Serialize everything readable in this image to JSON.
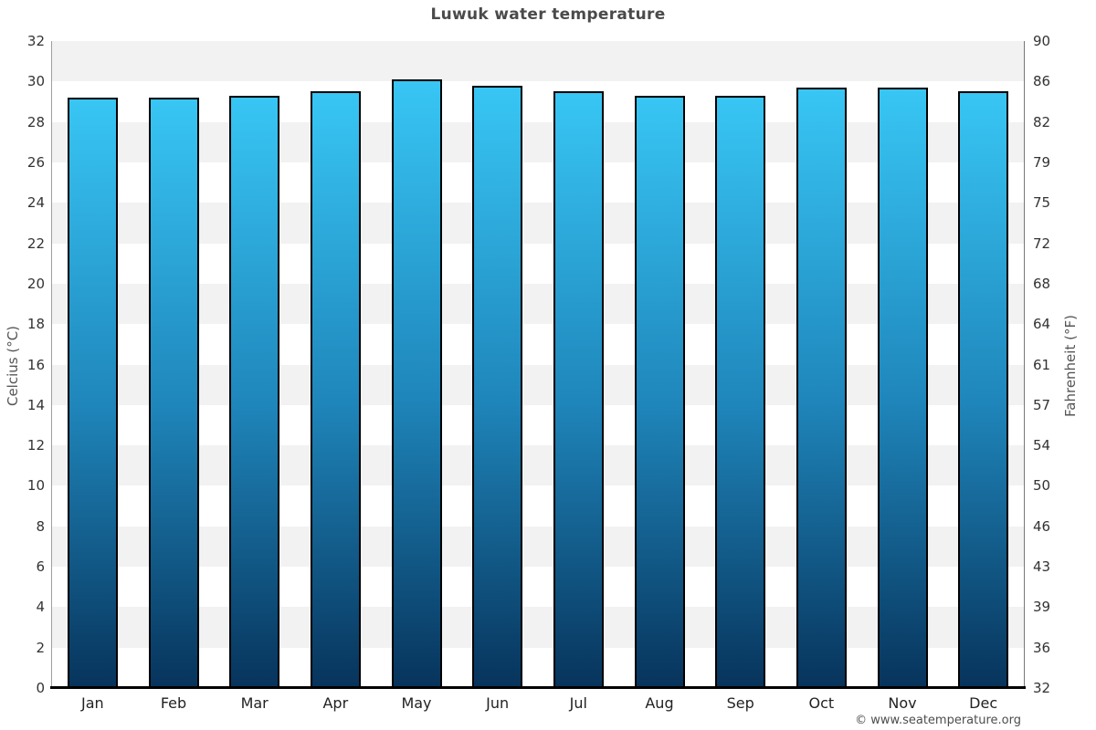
{
  "title": "Luwuk water temperature",
  "footer": "© www.seatemperature.org",
  "chart_data": {
    "type": "bar",
    "title": "Luwuk water temperature",
    "categories": [
      "Jan",
      "Feb",
      "Mar",
      "Apr",
      "May",
      "Jun",
      "Jul",
      "Aug",
      "Sep",
      "Oct",
      "Nov",
      "Dec"
    ],
    "series": [
      {
        "name": "Water temperature",
        "unit": "°C",
        "values": [
          29.2,
          29.2,
          29.3,
          29.5,
          30.1,
          29.8,
          29.5,
          29.3,
          29.3,
          29.7,
          29.7,
          29.5
        ]
      }
    ],
    "left_axis": {
      "title": "Celcius (°C)",
      "range": [
        0,
        32
      ],
      "tick_step": 2,
      "ticks_top_to_bottom": [
        "32",
        "30",
        "28",
        "26",
        "24",
        "22",
        "20",
        "18",
        "16",
        "14",
        "12",
        "10",
        "8",
        "6",
        "4",
        "2",
        "0"
      ]
    },
    "right_axis": {
      "title": "Fahrenheit (°F)",
      "range": [
        32,
        90
      ],
      "ticks_top_to_bottom": [
        "90",
        "86",
        "82",
        "79",
        "75",
        "72",
        "68",
        "64",
        "61",
        "57",
        "54",
        "50",
        "46",
        "43",
        "39",
        "36",
        "32"
      ]
    },
    "layout_hints": {
      "grid": "alternating horizontal bands, gray starting at top band",
      "legend": "none"
    },
    "colors": {
      "bar_gradient_top": "#38c6f4",
      "bar_gradient_mid": "#1f86bb",
      "bar_gradient_bottom": "#07345c",
      "bar_border": "#000000",
      "band_gray": "#f2f2f2",
      "band_white": "#ffffff",
      "background": "#ffffff",
      "title_text": "#4a4a4a",
      "tick_text": "#333333"
    }
  }
}
